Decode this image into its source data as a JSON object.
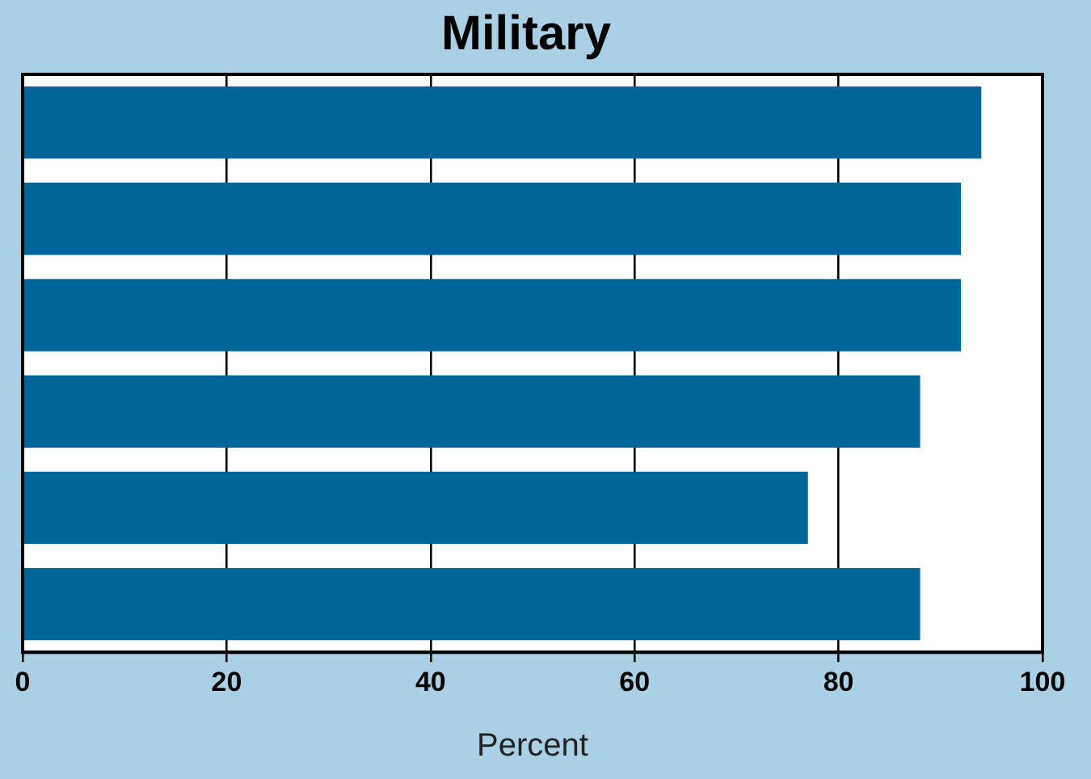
{
  "chart_data": {
    "type": "bar",
    "orientation": "horizontal",
    "title": "Military",
    "xlabel": "Percent",
    "categories": [
      null,
      null,
      null,
      null,
      null,
      null
    ],
    "values": [
      94,
      92,
      92,
      88,
      77,
      88
    ],
    "color": "#00669a",
    "xlim": [
      0,
      100
    ],
    "xticks": [
      0,
      20,
      40,
      60,
      80,
      100
    ],
    "grid": "x",
    "legend": false,
    "tick_labels": "x"
  }
}
